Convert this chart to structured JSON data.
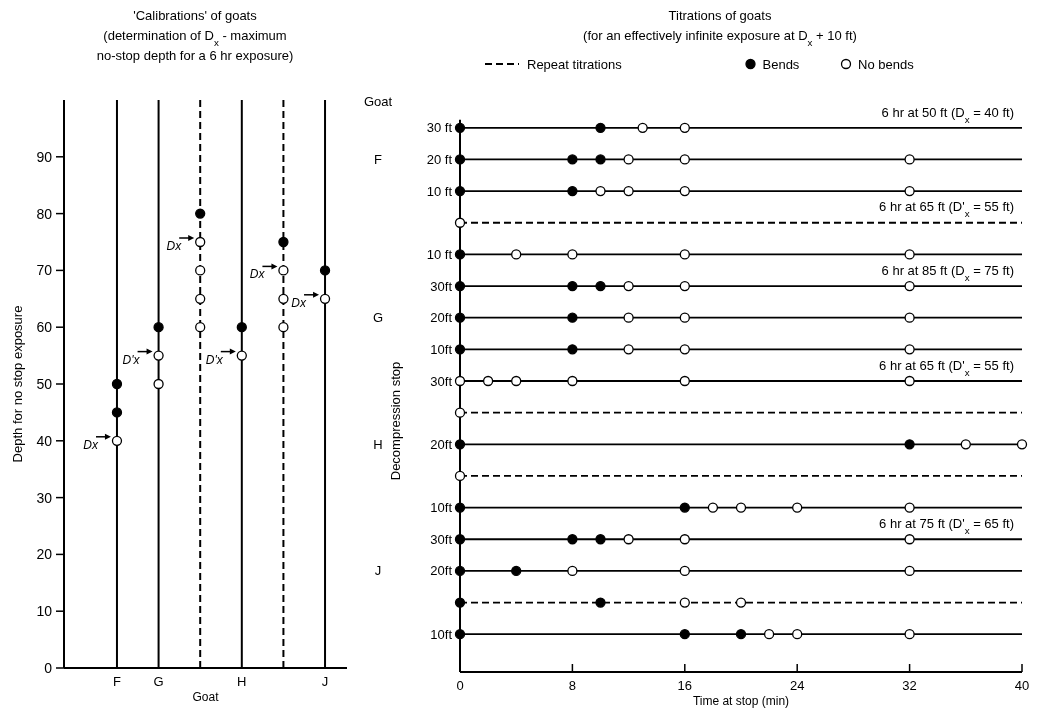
{
  "chart_data": [
    {
      "type": "scatter",
      "title": "'Calibrations' of goats",
      "subtitle": "(determination of D$_{x}$ - maximum no-stop depth for a 6 hr exposure)",
      "xlabel": "Goat",
      "ylabel": "Depth for no stop exposure",
      "categories": [
        "F",
        "G",
        null,
        "H",
        null,
        "J"
      ],
      "ylim": [
        0,
        100
      ],
      "yticks": [
        0,
        10,
        20,
        30,
        40,
        50,
        60,
        70,
        80,
        90
      ],
      "marker": "circle",
      "grid": "x",
      "series": [
        {
          "color": "#000000",
          "values": [
            50,
            60,
            80,
            60,
            75,
            70
          ]
        },
        {
          "color": "#000000",
          "values": [
            45,
            null,
            null,
            null,
            null,
            null
          ]
        },
        {
          "color": "#ffffff",
          "values": [
            40,
            55,
            75,
            55,
            70,
            65
          ]
        },
        {
          "color": "#ffffff",
          "values": [
            null,
            50,
            70,
            null,
            65,
            null
          ]
        },
        {
          "color": "#ffffff",
          "values": [
            null,
            null,
            65,
            null,
            60,
            null
          ]
        },
        {
          "color": "#ffffff",
          "values": [
            null,
            null,
            60,
            null,
            null,
            null
          ]
        }
      ],
      "annotations": [
        {
          "text": "Dx",
          "x": "F",
          "y": 40
        },
        {
          "text": "D'x",
          "x": "G",
          "y": 55
        },
        "Dx",
        {
          "text": "D'x",
          "x": "H",
          "y": 55
        },
        "Dx",
        {
          "text": "Dx",
          "x": "J",
          "y": 65
        }
      ]
    },
    {
      "type": "scatter",
      "orientation": "horizontal",
      "title": "Titrations of goats",
      "subtitle": "(for an effectively infinite exposure at D$_{x}$ + 10 ft)",
      "xlabel": "Time at stop (min)",
      "ylabel": "Decompression stop",
      "xlim": [
        0,
        40
      ],
      "xticks": [
        0,
        8,
        16,
        24,
        32,
        40
      ],
      "marker": "circle",
      "legend": "top",
      "grid": "y",
      "categories": [
        "30 ft",
        "20 ft",
        "10 ft",
        null,
        "10 ft",
        "30ft",
        "20ft",
        "10ft",
        "30ft",
        null,
        "20ft",
        null,
        "10ft",
        "30ft",
        "20ft",
        null,
        "10ft"
      ],
      "series": [
        {
          "name": "Bends",
          "color": "#000000",
          "values": [
            0,
            0,
            0,
            null,
            0,
            0,
            0,
            0,
            null,
            null,
            0,
            null,
            0,
            0,
            0,
            0,
            0
          ]
        },
        {
          "color": "#000000",
          "values": [
            10,
            8,
            8,
            null,
            null,
            8,
            8,
            8,
            null,
            null,
            32,
            null,
            16,
            8,
            4,
            10,
            16
          ]
        },
        {
          "color": "#000000",
          "values": [
            null,
            10,
            null,
            null,
            null,
            10,
            null,
            null,
            null,
            null,
            null,
            null,
            null,
            10,
            null,
            null,
            20
          ]
        },
        {
          "name": "No bends",
          "color": "#ffffff",
          "values": [
            13,
            12,
            10,
            0,
            4,
            12,
            12,
            12,
            0,
            0,
            36,
            0,
            18,
            12,
            8,
            16,
            22
          ]
        },
        {
          "color": "#ffffff",
          "values": [
            16,
            16,
            12,
            null,
            8,
            16,
            16,
            16,
            2,
            null,
            40,
            null,
            20,
            16,
            16,
            20,
            24
          ]
        },
        {
          "color": "#ffffff",
          "values": [
            null,
            32,
            16,
            null,
            16,
            32,
            32,
            32,
            4,
            null,
            null,
            null,
            24,
            32,
            32,
            null,
            32
          ]
        },
        {
          "color": "#ffffff",
          "values": [
            null,
            null,
            32,
            null,
            32,
            null,
            null,
            null,
            8,
            null,
            null,
            null,
            32,
            null,
            null,
            null,
            null
          ]
        },
        {
          "color": "#ffffff",
          "values": [
            null,
            null,
            null,
            null,
            null,
            null,
            null,
            null,
            16,
            null,
            null,
            null,
            null,
            null,
            null,
            null,
            null
          ]
        },
        {
          "color": "#ffffff",
          "values": [
            null,
            null,
            null,
            null,
            null,
            null,
            null,
            null,
            32,
            null,
            null,
            null,
            null,
            null,
            null,
            null,
            null
          ]
        }
      ],
      "annotations": [
        "Repeat titrations",
        "Goat",
        "F",
        "G",
        "H",
        "J",
        "6 hr at 50 ft (D$_{x}$ = 40 ft)",
        "6 hr at 65 ft (D'$_{x}$ = 55 ft)",
        "6 hr at 85 ft (D$_{x}$ = 75 ft)",
        "6 hr at 65 ft (D'$_{x}$ = 55 ft)",
        "6 hr at 75 ft (D'$_{x}$ = 65 ft)"
      ]
    }
  ]
}
